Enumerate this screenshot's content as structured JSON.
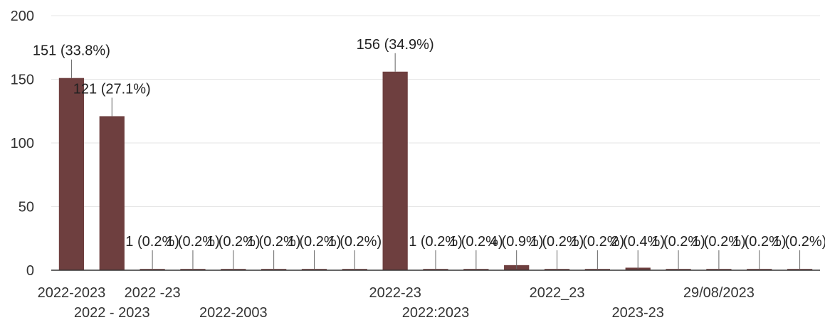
{
  "chart_data": {
    "type": "bar",
    "categories": [
      "2022-2023",
      "2022 - 2023",
      "2022 -23",
      "",
      "2022-2003",
      "",
      "",
      "",
      "2022-23",
      "2022:2023",
      "",
      "",
      "2022_23",
      "",
      "2023-23",
      "",
      "29/08/2023",
      "",
      ""
    ],
    "values": [
      151,
      121,
      1,
      1,
      1,
      1,
      1,
      1,
      156,
      1,
      1,
      4,
      1,
      1,
      2,
      1,
      1,
      1,
      1
    ],
    "data_labels": [
      "151 (33.8%)",
      "121 (27.1%)",
      "1 (0.2%)",
      "1 (0.2%)",
      "1 (0.2%)",
      "1 (0.2%)",
      "1 (0.2%)",
      "1 (0.2%)",
      "156 (34.9%)",
      "1 (0.2%)",
      "1 (0.2%)",
      "4 (0.9%)",
      "1 (0.2%)",
      "1 (0.2%)",
      "2 (0.4%)",
      "1 (0.2%)",
      "1 (0.2%)",
      "1 (0.2%)",
      "1 (0.2%)"
    ],
    "y_ticks": [
      0,
      50,
      100,
      150,
      200
    ],
    "ylim": [
      0,
      200
    ],
    "title": "",
    "xlabel": "",
    "ylabel": "",
    "grid": true,
    "bar_color": "#6e3f3f"
  }
}
